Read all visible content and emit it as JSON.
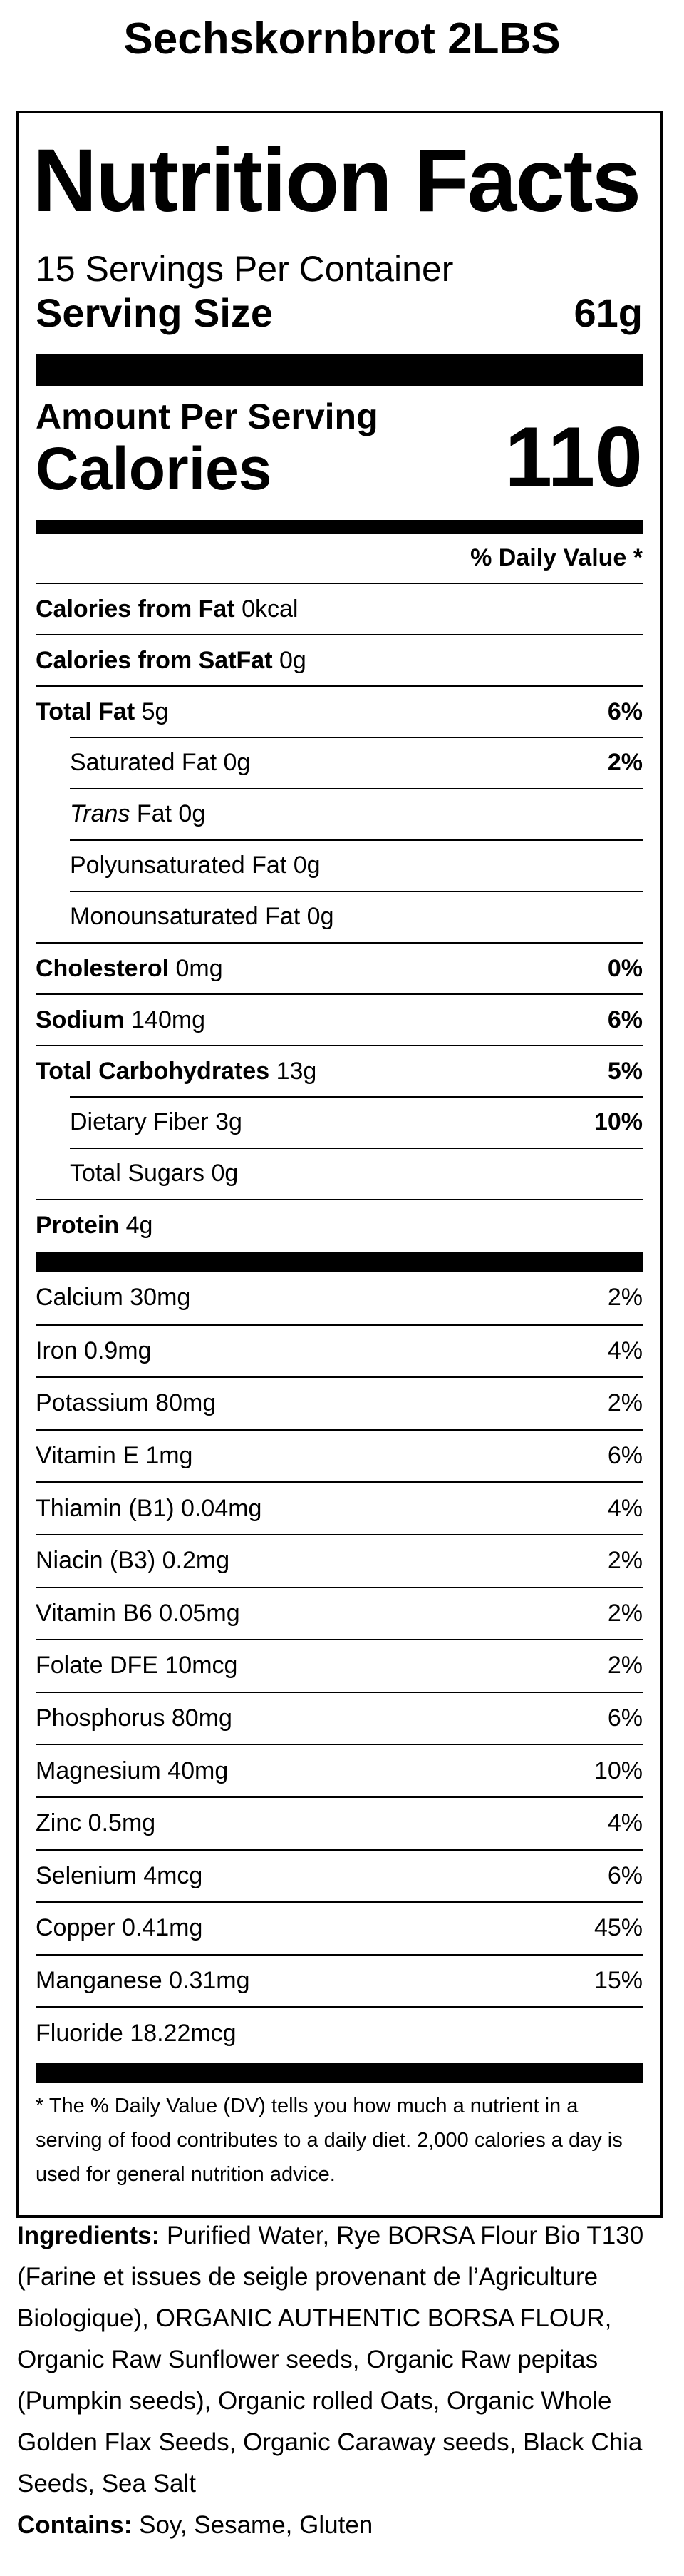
{
  "product_title": "Sechskornbrot 2LBS",
  "label": {
    "title": "Nutrition Facts",
    "servings_per_container": "15 Servings Per Container",
    "serving_size_label": "Serving Size",
    "serving_size_value": "61g",
    "amount_per_serving": "Amount Per Serving",
    "calories_label": "Calories",
    "calories_value": "110",
    "dv_header": "% Daily Value *"
  },
  "nutrients": [
    {
      "name": "Calories from Fat",
      "amount": "0kcal",
      "dv": "",
      "bold": true,
      "indent": false,
      "italic_prefix": ""
    },
    {
      "name": "Calories from SatFat",
      "amount": "0g",
      "dv": "",
      "bold": true,
      "indent": false,
      "italic_prefix": ""
    },
    {
      "name": "Total Fat",
      "amount": "5g",
      "dv": "6%",
      "bold": true,
      "indent": false,
      "italic_prefix": ""
    },
    {
      "name": "Saturated Fat",
      "amount": "0g",
      "dv": "2%",
      "bold": false,
      "indent": true,
      "italic_prefix": ""
    },
    {
      "name": "Fat",
      "amount": "0g",
      "dv": "",
      "bold": false,
      "indent": true,
      "italic_prefix": "Trans"
    },
    {
      "name": "Polyunsaturated Fat",
      "amount": "0g",
      "dv": "",
      "bold": false,
      "indent": true,
      "italic_prefix": ""
    },
    {
      "name": "Monounsaturated Fat",
      "amount": "0g",
      "dv": "",
      "bold": false,
      "indent": true,
      "italic_prefix": ""
    },
    {
      "name": "Cholesterol",
      "amount": "0mg",
      "dv": "0%",
      "bold": true,
      "indent": false,
      "italic_prefix": ""
    },
    {
      "name": "Sodium",
      "amount": "140mg",
      "dv": "6%",
      "bold": true,
      "indent": false,
      "italic_prefix": ""
    },
    {
      "name": "Total Carbohydrates",
      "amount": "13g",
      "dv": "5%",
      "bold": true,
      "indent": false,
      "italic_prefix": ""
    },
    {
      "name": "Dietary Fiber",
      "amount": "3g",
      "dv": "10%",
      "bold": false,
      "indent": true,
      "italic_prefix": ""
    },
    {
      "name": "Total Sugars",
      "amount": "0g",
      "dv": "",
      "bold": false,
      "indent": true,
      "italic_prefix": ""
    },
    {
      "name": "Protein",
      "amount": "4g",
      "dv": "",
      "bold": true,
      "indent": false,
      "italic_prefix": ""
    }
  ],
  "vitamins": [
    {
      "text": "Calcium 30mg",
      "dv": "2%"
    },
    {
      "text": "Iron 0.9mg",
      "dv": "4%"
    },
    {
      "text": "Potassium 80mg",
      "dv": "2%"
    },
    {
      "text": "Vitamin E 1mg",
      "dv": "6%"
    },
    {
      "text": "Thiamin (B1) 0.04mg",
      "dv": "4%"
    },
    {
      "text": "Niacin (B3) 0.2mg",
      "dv": "2%"
    },
    {
      "text": "Vitamin B6 0.05mg",
      "dv": "2%"
    },
    {
      "text": "Folate DFE 10mcg",
      "dv": "2%"
    },
    {
      "text": "Phosphorus 80mg",
      "dv": "6%"
    },
    {
      "text": "Magnesium 40mg",
      "dv": "10%"
    },
    {
      "text": "Zinc 0.5mg",
      "dv": "4%"
    },
    {
      "text": "Selenium 4mcg",
      "dv": "6%"
    },
    {
      "text": "Copper 0.41mg",
      "dv": "45%"
    },
    {
      "text": "Manganese 0.31mg",
      "dv": "15%"
    },
    {
      "text": "Fluoride 18.22mcg",
      "dv": ""
    }
  ],
  "footnote": "* The % Daily Value (DV) tells you how much a nutrient in a serving of food contributes to a daily diet. 2,000 calories a day is used for general nutrition advice.",
  "ingredients_label": "Ingredients:",
  "ingredients_text": "Purified Water, Rye BORSA Flour Bio T130 (Farine et issues de seigle provenant de l’Agriculture Biologique), ORGANIC AUTHENTIC BORSA FLOUR, Organic Raw Sunflower seeds, Organic Raw pepitas (Pumpkin seeds), Organic rolled Oats, Organic Whole Golden Flax Seeds, Organic Caraway seeds, Black Chia Seeds, Sea Salt",
  "contains_label": "Contains:",
  "contains_text": "Soy, Sesame, Gluten"
}
